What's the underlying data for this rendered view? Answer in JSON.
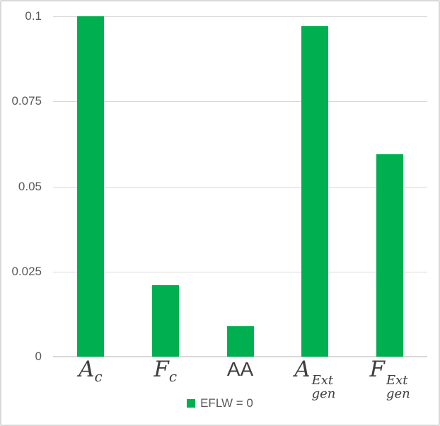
{
  "chart_data": {
    "type": "bar",
    "title": "",
    "xlabel": "",
    "ylabel": "",
    "categories": [
      {
        "base": "A",
        "sub": "c",
        "sup": "",
        "italic": true
      },
      {
        "base": "F",
        "sub": "c",
        "sup": "",
        "italic": true
      },
      {
        "base": "AA",
        "sub": "",
        "sup": "",
        "italic": false
      },
      {
        "base": "A",
        "sub": "gen",
        "sup": "Ext",
        "italic": true
      },
      {
        "base": "F",
        "sub": "gen",
        "sup": "Ext",
        "italic": true
      }
    ],
    "category_plain_text": [
      "A_c",
      "F_c",
      "AA",
      "A_gen^Ext",
      "F_gen^Ext"
    ],
    "series": [
      {
        "name": "EFLW = 0",
        "values": [
          0.1,
          0.021,
          0.009,
          0.097,
          0.0595
        ]
      }
    ],
    "ylim": [
      0,
      0.1
    ],
    "y_ticks": [
      0,
      0.025,
      0.05,
      0.075,
      0.1
    ],
    "y_tick_labels": [
      "0",
      "0.025",
      "0.05",
      "0.075",
      "0.1"
    ],
    "grid": true,
    "legend_position": "bottom",
    "colors": {
      "bar": "#00B050",
      "gridline": "#D9D9D9",
      "axis_line": "#D9D9D9",
      "frame_border": "#D9D9D9",
      "y_tick_text": "#595959",
      "x_label_text": "#3F3F3F",
      "legend_text": "#595959",
      "background": "#FFFFFF"
    }
  },
  "legend": {
    "label": "EFLW = 0"
  }
}
